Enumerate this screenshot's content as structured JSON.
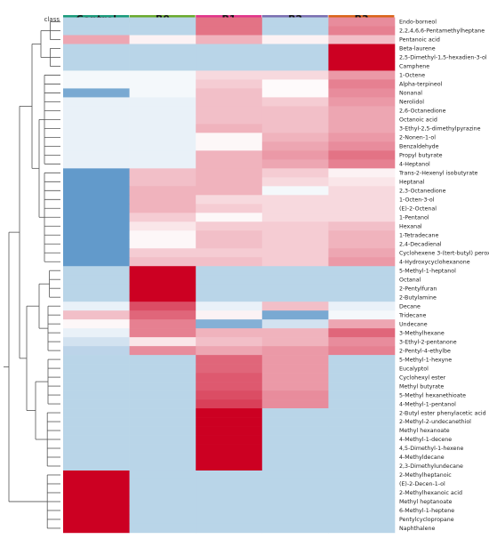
{
  "chart_data": {
    "type": "heatmap",
    "title": "",
    "xlabel": "",
    "ylabel": "",
    "class_label": "class",
    "columns": [
      {
        "name": "Control",
        "color": "#1a9a7a"
      },
      {
        "name": "B0",
        "color": "#6aaa2e"
      },
      {
        "name": "B1",
        "color": "#e0358a"
      },
      {
        "name": "B2",
        "color": "#7b6fb0"
      },
      {
        "name": "B3",
        "color": "#d9651a"
      }
    ],
    "color_scale": {
      "low": "#1f6fb4",
      "mid": "#ffffff",
      "high": "#cc0022",
      "base": "#b9d5e8"
    },
    "rows": [
      {
        "label": "Endo-borneol",
        "values": [
          0,
          0,
          0.55,
          0,
          0.45
        ]
      },
      {
        "label": "2,2,4,6,6-Pentamethylheptane",
        "values": [
          0,
          0,
          0.55,
          0,
          0.5
        ]
      },
      {
        "label": "Pentanoic acid",
        "values": [
          0.35,
          0.05,
          0.3,
          0.05,
          0.25
        ]
      },
      {
        "label": "Beta-laurene",
        "values": [
          0,
          0,
          0,
          0,
          1
        ]
      },
      {
        "label": "2,5-Dimethyl-1,5-hexadien-3-ol",
        "values": [
          0,
          0,
          0,
          0,
          1
        ]
      },
      {
        "label": "Camphene",
        "values": [
          0,
          0,
          0,
          0,
          1
        ]
      },
      {
        "label": "1-Octene",
        "values": [
          -0.05,
          -0.05,
          0.15,
          0.15,
          0.4
        ]
      },
      {
        "label": "Alpha-terpineol",
        "values": [
          -0.05,
          -0.05,
          0.2,
          0.02,
          0.5
        ]
      },
      {
        "label": "Nonanal",
        "values": [
          -0.6,
          -0.05,
          0.25,
          0.02,
          0.45
        ]
      },
      {
        "label": "Nerolidol",
        "values": [
          -0.1,
          -0.1,
          0.25,
          0.2,
          0.4
        ]
      },
      {
        "label": "2,6-Octanedione",
        "values": [
          -0.1,
          -0.1,
          0.25,
          0.25,
          0.35
        ]
      },
      {
        "label": "Octanoic acid",
        "values": [
          -0.1,
          -0.1,
          0.25,
          0.25,
          0.35
        ]
      },
      {
        "label": "3-Ethyl-2,5-dimethylpyrazine",
        "values": [
          -0.1,
          -0.1,
          0.3,
          0.25,
          0.35
        ]
      },
      {
        "label": "2-Nonen-1-ol",
        "values": [
          -0.1,
          -0.1,
          0.03,
          0.3,
          0.4
        ]
      },
      {
        "label": "Benzaldehyde",
        "values": [
          -0.1,
          -0.1,
          0.03,
          0.35,
          0.45
        ]
      },
      {
        "label": "Propyl butyrate",
        "values": [
          -0.1,
          -0.1,
          0.3,
          0.4,
          0.55
        ]
      },
      {
        "label": "4-Heptanol",
        "values": [
          -0.1,
          -0.1,
          0.3,
          0.35,
          0.5
        ]
      },
      {
        "label": "Trans-2-Hexenyl isobutyrate",
        "values": [
          -0.7,
          0.25,
          0.3,
          0.2,
          0.05
        ]
      },
      {
        "label": "Heptanal",
        "values": [
          -0.7,
          0.25,
          0.3,
          0.15,
          0.1
        ]
      },
      {
        "label": "2,3-Octanedione",
        "values": [
          -0.7,
          0.3,
          0.3,
          -0.05,
          0.15
        ]
      },
      {
        "label": "1-Octen-3-ol",
        "values": [
          -0.7,
          0.3,
          0.15,
          0.15,
          0.15
        ]
      },
      {
        "label": "(E)-2-Octenal",
        "values": [
          -0.7,
          0.3,
          0.2,
          0.15,
          0.15
        ]
      },
      {
        "label": "1-Pentanol",
        "values": [
          -0.7,
          0.2,
          0.03,
          0.15,
          0.15
        ]
      },
      {
        "label": "Hexanal",
        "values": [
          -0.7,
          0.1,
          0.2,
          0.2,
          0.25
        ]
      },
      {
        "label": "1-Tetradecane",
        "values": [
          -0.7,
          0.03,
          0.25,
          0.2,
          0.3
        ]
      },
      {
        "label": "2,4-Decadienal",
        "values": [
          -0.7,
          0.03,
          0.25,
          0.2,
          0.3
        ]
      },
      {
        "label": "Cyclohexene 3-(tert-butyl) peroxide",
        "values": [
          -0.7,
          0.2,
          0.2,
          0.2,
          0.35
        ]
      },
      {
        "label": "4-Hydroxycyclohexanone",
        "values": [
          -0.7,
          0.25,
          0.25,
          0.2,
          0.4
        ]
      },
      {
        "label": "5-Methyl-1-heptanol",
        "values": [
          0,
          1,
          0,
          0,
          0
        ]
      },
      {
        "label": "Octanal",
        "values": [
          0,
          1,
          0,
          0,
          0
        ]
      },
      {
        "label": "2-Pentylfuran",
        "values": [
          0,
          1,
          0,
          0,
          0
        ]
      },
      {
        "label": "2-Butylamine",
        "values": [
          0,
          1,
          0,
          0,
          0
        ]
      },
      {
        "label": "Decane",
        "values": [
          -0.1,
          0.7,
          -0.1,
          0.25,
          -0.1
        ]
      },
      {
        "label": "Tridecane",
        "values": [
          0.25,
          0.6,
          0.05,
          -0.6,
          -0.05
        ]
      },
      {
        "label": "Undecane",
        "values": [
          0.03,
          0.5,
          -0.55,
          -0.2,
          0.35
        ]
      },
      {
        "label": "3-Methylhexane",
        "values": [
          -0.1,
          0.5,
          0.3,
          0.3,
          0.6
        ]
      },
      {
        "label": "3-Ethyl-2-pentanone",
        "values": [
          -0.2,
          0.1,
          0.25,
          0.3,
          0.45
        ]
      },
      {
        "label": "2-Pentyl-4-ethylbe",
        "values": [
          -0.3,
          0.45,
          0.35,
          0.4,
          0.5
        ]
      },
      {
        "label": "5-Methyl-1-hexyne",
        "values": [
          0,
          0,
          0.6,
          0.4,
          0
        ]
      },
      {
        "label": "Eucalyptol",
        "values": [
          0,
          0,
          0.6,
          0.4,
          0
        ]
      },
      {
        "label": "Cyclohexyl ester",
        "values": [
          0,
          0,
          0.65,
          0.4,
          0
        ]
      },
      {
        "label": "Methyl butyrate",
        "values": [
          0,
          0,
          0.65,
          0.4,
          0
        ]
      },
      {
        "label": "5-Methyl hexanethioate",
        "values": [
          0,
          0,
          0.7,
          0.45,
          0
        ]
      },
      {
        "label": "4-Methyl-1-pentanol",
        "values": [
          0,
          0,
          0.75,
          0.45,
          0
        ]
      },
      {
        "label": "2-Butyl ester phenylacetic acid",
        "values": [
          0,
          0,
          1,
          0,
          0
        ]
      },
      {
        "label": "2-Methyl-2-undecanethiol",
        "values": [
          0,
          0,
          1,
          0,
          0
        ]
      },
      {
        "label": "Methyl hexanoate",
        "values": [
          0,
          0,
          1,
          0,
          0
        ]
      },
      {
        "label": "4-Methyl-1-decene",
        "values": [
          0,
          0,
          1,
          0,
          0
        ]
      },
      {
        "label": "4,5-Dimethyl-1-hexene",
        "values": [
          0,
          0,
          1,
          0,
          0
        ]
      },
      {
        "label": "4-Methyldecane",
        "values": [
          0,
          0,
          1,
          0,
          0
        ]
      },
      {
        "label": "2,3-Dimethylundecane",
        "values": [
          0,
          0,
          1,
          0,
          0
        ]
      },
      {
        "label": "2-Methylheptanoic",
        "values": [
          1,
          0,
          0,
          0,
          0
        ]
      },
      {
        "label": "(E)-2-Decen-1-ol",
        "values": [
          1,
          0,
          0,
          0,
          0
        ]
      },
      {
        "label": "2-Methylhexanoic acid",
        "values": [
          1,
          0,
          0,
          0,
          0
        ]
      },
      {
        "label": "Methyl heptanoate",
        "values": [
          1,
          0,
          0,
          0,
          0
        ]
      },
      {
        "label": "6-Methyl-1-heptene",
        "values": [
          1,
          0,
          0,
          0,
          0
        ]
      },
      {
        "label": "Pentylcyclopropane",
        "values": [
          1,
          0,
          0,
          0,
          0
        ]
      },
      {
        "label": "Naphthalene",
        "values": [
          1,
          0,
          0,
          0,
          0
        ]
      }
    ],
    "dendrogram": "rows",
    "legend": "none"
  }
}
